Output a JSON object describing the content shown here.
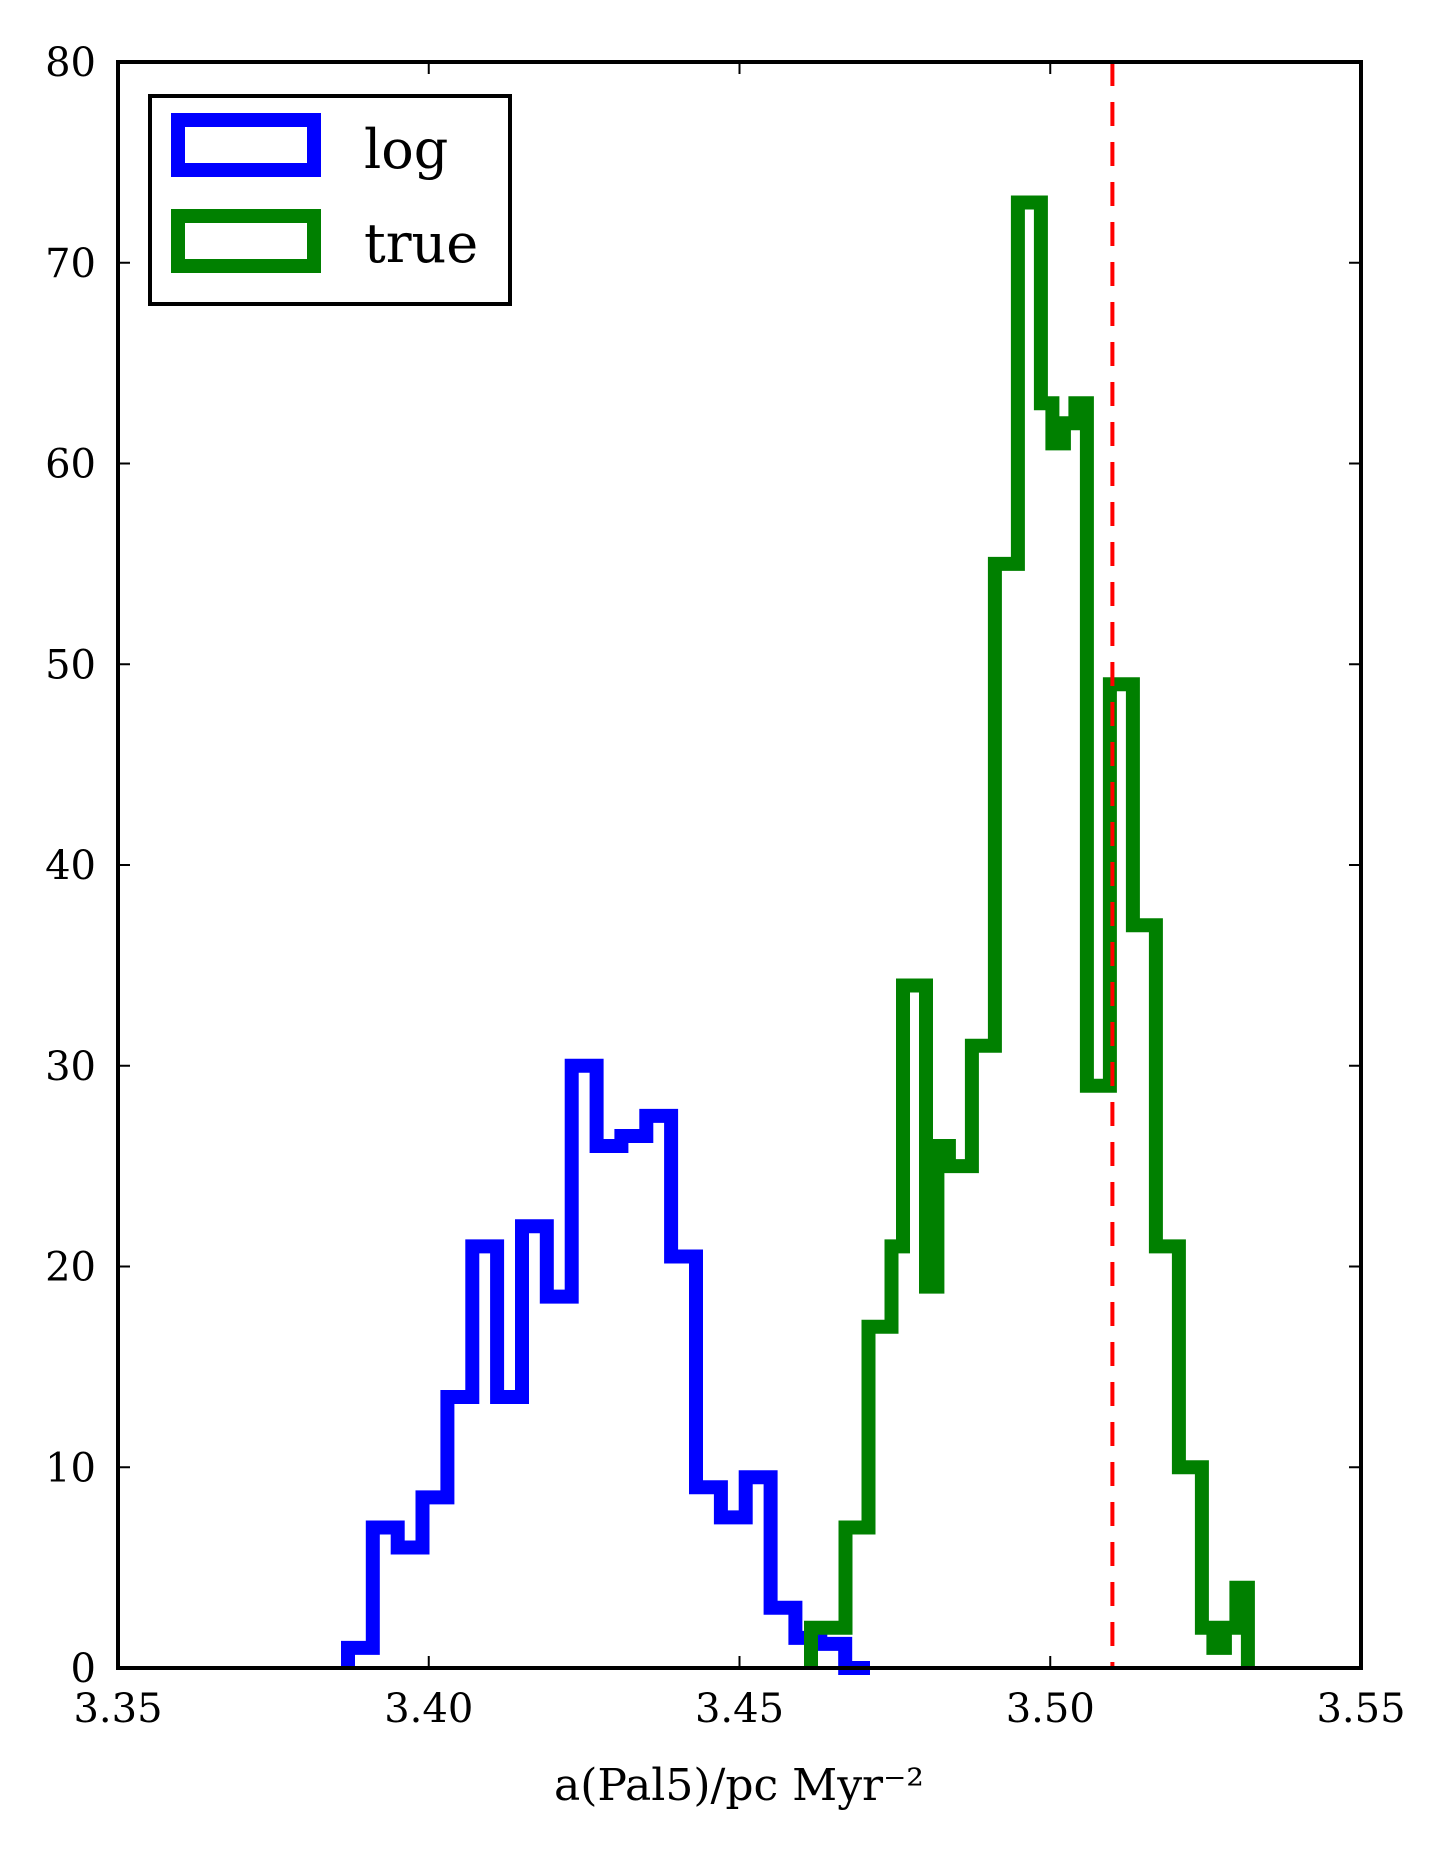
{
  "chart_data": {
    "type": "histogram",
    "xlabel": "a(Pal5)/pc Myr⁻²",
    "ylabel": "",
    "xlim": [
      3.35,
      3.55
    ],
    "ylim": [
      0,
      80
    ],
    "xticks": [
      "3.35",
      "3.40",
      "3.45",
      "3.50",
      "3.55"
    ],
    "yticks": [
      "0",
      "10",
      "20",
      "30",
      "40",
      "50",
      "60",
      "70",
      "80"
    ],
    "grid": false,
    "legend": {
      "position": "top-left"
    },
    "series": [
      {
        "name": "log",
        "color": "#0000ff",
        "bin_width": 0.004,
        "bins_start": 3.387,
        "counts": [
          1,
          7,
          6,
          8.5,
          13.5,
          21,
          13.5,
          22,
          18.5,
          30,
          26,
          26.5,
          27.5,
          20.5,
          9,
          7.5,
          9.5,
          3,
          1.5,
          1.2,
          0
        ]
      },
      {
        "name": "true",
        "color": "#008000",
        "bin_width": 0.00185,
        "bins_start": 3.4615,
        "counts": [
          2,
          2,
          2,
          7,
          7,
          17,
          17,
          21,
          34,
          34,
          19,
          26,
          25,
          25,
          31,
          31,
          55,
          55,
          73,
          73,
          63,
          61,
          62,
          63,
          29,
          29,
          49,
          49,
          37,
          37,
          21,
          21,
          10,
          10,
          2,
          1,
          2,
          4
        ]
      }
    ],
    "reference_line": {
      "x": 3.51,
      "color": "#ff0000",
      "style": "dashed"
    }
  }
}
